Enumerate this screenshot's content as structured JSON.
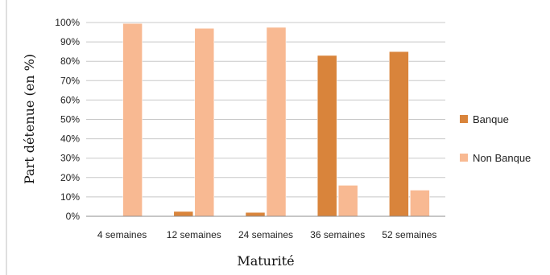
{
  "chart_data": {
    "type": "bar",
    "categories": [
      "4  semaines",
      "12 semaines",
      "24 semaines",
      "36 semaines",
      "52 semaines"
    ],
    "series": [
      {
        "name": "Banque",
        "values": [
          0,
          2.5,
          2,
          83,
          85
        ],
        "color": "#d9843b"
      },
      {
        "name": "Non Banque",
        "values": [
          99.5,
          97,
          97.5,
          16,
          13.5
        ],
        "color": "#f8b992"
      }
    ],
    "xlabel": "Maturité",
    "ylabel": "Part détenue (en %)",
    "ylim": [
      0,
      100
    ],
    "yticks": [
      "0%",
      "10%",
      "20%",
      "30%",
      "40%",
      "50%",
      "60%",
      "70%",
      "80%",
      "90%",
      "100%"
    ],
    "grid": true,
    "legend": "right"
  }
}
